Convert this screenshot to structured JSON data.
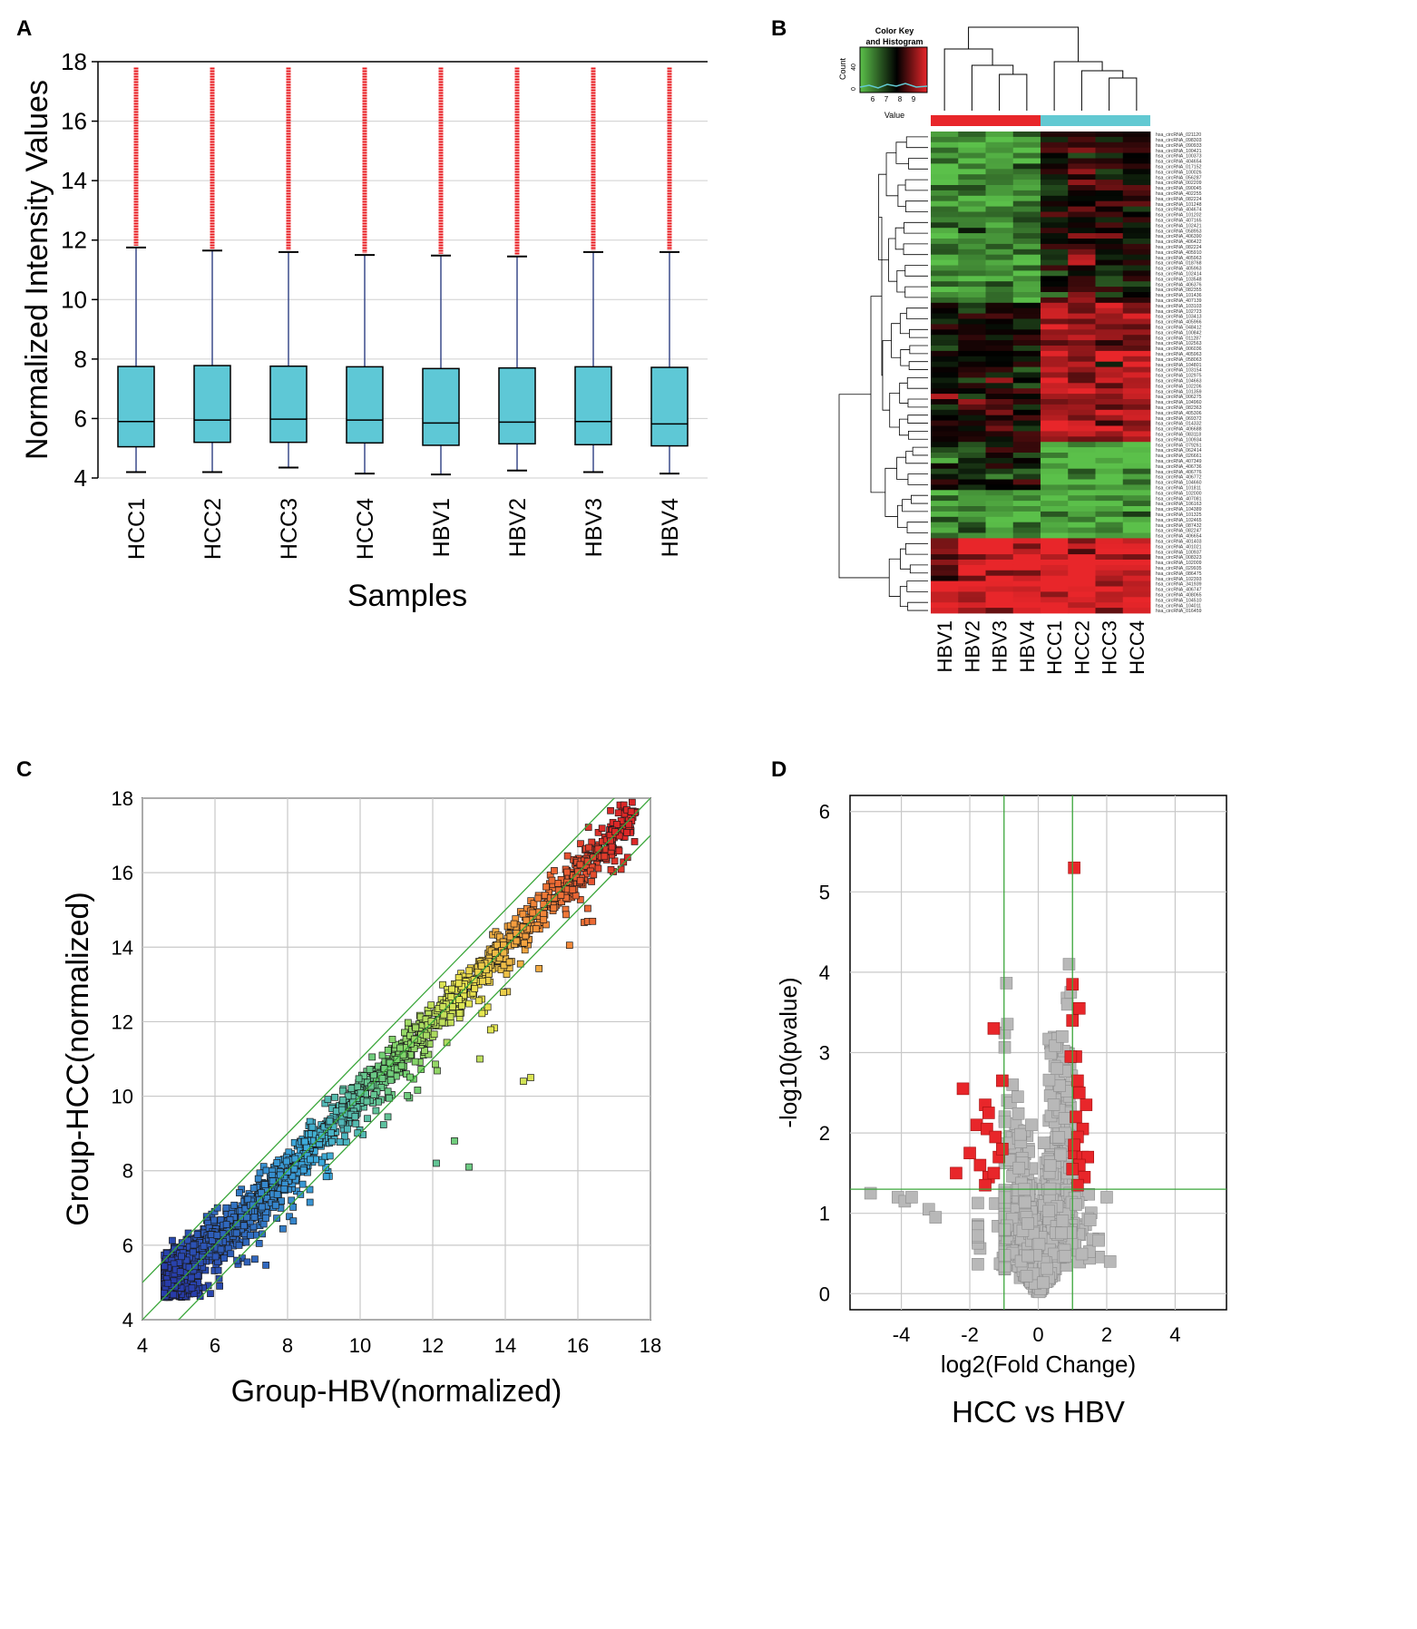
{
  "chart_data": [
    {
      "panel": "A",
      "type": "boxplot",
      "xlabel": "Samples",
      "ylabel": "Normalized Intensity Values",
      "ylim": [
        4,
        18
      ],
      "yticks": [
        4,
        6,
        8,
        10,
        12,
        14,
        16,
        18
      ],
      "grid": true,
      "colors": {
        "box": "#5ec8d6",
        "whisker": "#3a4a8a",
        "outlier": "#e8141a"
      },
      "boxes": [
        {
          "name": "HCC1",
          "min": 4.2,
          "q1": 5.05,
          "median": 5.9,
          "q3": 7.75,
          "max": 11.75,
          "outlier_max": 17.8
        },
        {
          "name": "HCC2",
          "min": 4.2,
          "q1": 5.2,
          "median": 5.95,
          "q3": 7.78,
          "max": 11.65,
          "outlier_max": 17.8
        },
        {
          "name": "HCC3",
          "min": 4.35,
          "q1": 5.2,
          "median": 5.98,
          "q3": 7.76,
          "max": 11.6,
          "outlier_max": 17.8
        },
        {
          "name": "HCC4",
          "min": 4.15,
          "q1": 5.18,
          "median": 5.95,
          "q3": 7.74,
          "max": 11.5,
          "outlier_max": 17.8
        },
        {
          "name": "HBV1",
          "min": 4.12,
          "q1": 5.1,
          "median": 5.85,
          "q3": 7.68,
          "max": 11.48,
          "outlier_max": 17.8
        },
        {
          "name": "HBV2",
          "min": 4.25,
          "q1": 5.15,
          "median": 5.88,
          "q3": 7.7,
          "max": 11.45,
          "outlier_max": 17.8
        },
        {
          "name": "HBV3",
          "min": 4.2,
          "q1": 5.12,
          "median": 5.9,
          "q3": 7.74,
          "max": 11.6,
          "outlier_max": 17.8
        },
        {
          "name": "HBV4",
          "min": 4.15,
          "q1": 5.08,
          "median": 5.82,
          "q3": 7.72,
          "max": 11.6,
          "outlier_max": 17.8
        }
      ]
    },
    {
      "panel": "B",
      "type": "heatmap",
      "color_key_title": "Color Key and Histogram",
      "color_key_xlabel": "Value",
      "color_key_ylabel": "Count",
      "color_key_ticks": [
        "6",
        "7",
        "8",
        "9"
      ],
      "color_key_yticks": [
        "0",
        "40"
      ],
      "colors": {
        "low": "#5bc04a",
        "mid": "#000000",
        "high": "#e8262a",
        "group_hbv": "#e8262a",
        "group_hcc": "#62c9d2"
      },
      "columns": [
        "HBV1",
        "HBV2",
        "HBV3",
        "HBV4",
        "HCC1",
        "HCC2",
        "HCC3",
        "HCC4"
      ],
      "row_count": 90,
      "row_label_prefix": "hsa_circRNA_",
      "row_ids": [
        "021120",
        "098303",
        "090933",
        "100421",
        "100373",
        "404654",
        "017152",
        "100026",
        "056287",
        "002209",
        "090045",
        "402255",
        "082224",
        "101248",
        "404674",
        "101202",
        "407165",
        "102421",
        "058953",
        "406390",
        "406422",
        "082224",
        "405910",
        "405963",
        "018768",
        "405963",
        "102414",
        "103548",
        "406376",
        "082355",
        "101436",
        "407139",
        "103103",
        "102723",
        "103413",
        "405966",
        "048412",
        "100842",
        "011287",
        "102563",
        "006036",
        "405963",
        "058063",
        "104801",
        "103154",
        "102975",
        "104663",
        "102206",
        "101359",
        "006275",
        "104960",
        "082363",
        "405306",
        "069372",
        "014332",
        "406688",
        "083118",
        "100934",
        "079261",
        "062414",
        "026661",
        "407349",
        "406736",
        "406776",
        "406772",
        "104660",
        "101811",
        "102000",
        "407081",
        "106163",
        "104389",
        "101325",
        "102465",
        "087432",
        "082247",
        "406654",
        "401403",
        "401021",
        "100937",
        "008323",
        "102009",
        "029935",
        "086475",
        "102393",
        "341939",
        "406747",
        "408065",
        "104510",
        "104011",
        "016459"
      ],
      "matrix_summary": "rows 1-20 mostly green in HBV, dark in HCC; rows 21-35 green/mixed; rows 36-55 red in HCC, dark in HBV; rows 56-75 green in HCC, mixed in HBV; rows 76-90 red across all"
    },
    {
      "panel": "C",
      "type": "scatter",
      "xlabel": "Group-HBV(normalized)",
      "ylabel": "Group-HCC(normalized)",
      "xlim": [
        4,
        18
      ],
      "ylim": [
        4,
        18
      ],
      "xticks": [
        4,
        6,
        8,
        10,
        12,
        14,
        16,
        18
      ],
      "yticks": [
        4,
        6,
        8,
        10,
        12,
        14,
        16,
        18
      ],
      "grid": true,
      "reference_lines": [
        {
          "name": "y = x",
          "intercept": 0
        },
        {
          "name": "y = x + 1",
          "intercept": 1
        },
        {
          "name": "y = x - 1",
          "intercept": -1
        }
      ],
      "point_count": 2600,
      "notable_outliers": [
        [
          12.6,
          8.8
        ],
        [
          12.1,
          8.2
        ],
        [
          13,
          8.1
        ],
        [
          14.5,
          10.4
        ],
        [
          14.7,
          10.5
        ],
        [
          13.3,
          11.0
        ],
        [
          10.2,
          9.4
        ]
      ],
      "colormap": "blue-cyan-green-yellow-orange-red by intensity"
    },
    {
      "panel": "D",
      "type": "scatter",
      "subtitle": "HCC  vs  HBV",
      "xlabel": "log2(Fold Change)",
      "ylabel": "-log10(pvalue)",
      "xlim": [
        -5.5,
        5.5
      ],
      "ylim": [
        -0.2,
        6.2
      ],
      "xticks": [
        -4,
        -2,
        0,
        2,
        4
      ],
      "yticks": [
        0,
        1,
        2,
        3,
        4,
        5,
        6
      ],
      "grid": true,
      "threshold_lines": {
        "x": [
          -1,
          1
        ],
        "y": 1.3
      },
      "colors": {
        "significant": "#e8262a",
        "not_significant": "#b8b8b8",
        "threshold": "#3aa63a"
      },
      "significant_points": [
        [
          1.05,
          5.3
        ],
        [
          1.0,
          3.85
        ],
        [
          1.2,
          3.55
        ],
        [
          1.0,
          3.4
        ],
        [
          1.1,
          2.95
        ],
        [
          0.95,
          2.95
        ],
        [
          1.15,
          2.65
        ],
        [
          1.2,
          2.5
        ],
        [
          1.4,
          2.35
        ],
        [
          1.1,
          2.2
        ],
        [
          1.3,
          2.05
        ],
        [
          1.15,
          1.95
        ],
        [
          1.05,
          1.75
        ],
        [
          1.3,
          1.7
        ],
        [
          1.45,
          1.7
        ],
        [
          1.2,
          1.6
        ],
        [
          1.0,
          1.55
        ],
        [
          1.35,
          1.45
        ],
        [
          1.15,
          1.35
        ],
        [
          1.05,
          1.85
        ],
        [
          -1.3,
          3.3
        ],
        [
          -1.05,
          2.65
        ],
        [
          -2.2,
          2.55
        ],
        [
          -1.55,
          2.35
        ],
        [
          -1.45,
          2.25
        ],
        [
          -1.8,
          2.1
        ],
        [
          -1.5,
          2.05
        ],
        [
          -1.25,
          1.95
        ],
        [
          -2.0,
          1.75
        ],
        [
          -1.15,
          1.7
        ],
        [
          -1.05,
          1.8
        ],
        [
          -1.7,
          1.6
        ],
        [
          -1.45,
          1.45
        ],
        [
          -1.3,
          1.5
        ],
        [
          -1.55,
          1.35
        ],
        [
          -2.4,
          1.5
        ]
      ],
      "notable_gray_points": [
        [
          -4.9,
          1.25
        ],
        [
          -4.1,
          1.2
        ],
        [
          -3.9,
          1.15
        ],
        [
          -3.7,
          1.2
        ],
        [
          -3.2,
          1.05
        ],
        [
          2.0,
          1.2
        ],
        [
          2.1,
          0.4
        ],
        [
          -3.0,
          0.95
        ]
      ]
    }
  ],
  "labels": {
    "a": "A",
    "b": "B",
    "c": "C",
    "d": "D"
  }
}
